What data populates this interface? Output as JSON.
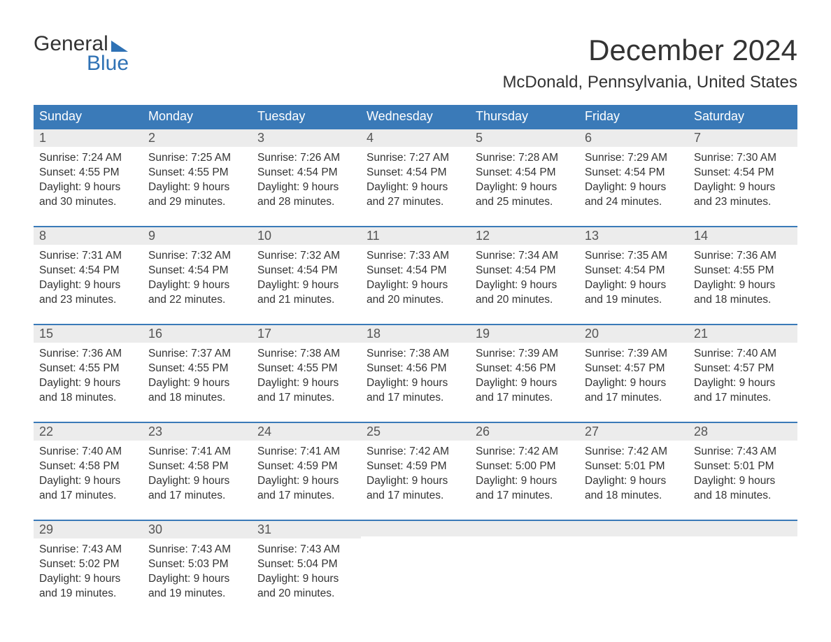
{
  "brand": {
    "line1": "General",
    "line2": "Blue"
  },
  "title": "December 2024",
  "location": "McDonald, Pennsylvania, United States",
  "colors": {
    "header_blue": "#3a7ab8",
    "band_grey": "#ececec",
    "text": "#333333",
    "page_bg": "#ffffff"
  },
  "weekdays": [
    "Sunday",
    "Monday",
    "Tuesday",
    "Wednesday",
    "Thursday",
    "Friday",
    "Saturday"
  ],
  "weeks": [
    [
      {
        "date": "1",
        "sunrise": "Sunrise: 7:24 AM",
        "sunset": "Sunset: 4:55 PM",
        "day1": "Daylight: 9 hours",
        "day2": "and 30 minutes."
      },
      {
        "date": "2",
        "sunrise": "Sunrise: 7:25 AM",
        "sunset": "Sunset: 4:55 PM",
        "day1": "Daylight: 9 hours",
        "day2": "and 29 minutes."
      },
      {
        "date": "3",
        "sunrise": "Sunrise: 7:26 AM",
        "sunset": "Sunset: 4:54 PM",
        "day1": "Daylight: 9 hours",
        "day2": "and 28 minutes."
      },
      {
        "date": "4",
        "sunrise": "Sunrise: 7:27 AM",
        "sunset": "Sunset: 4:54 PM",
        "day1": "Daylight: 9 hours",
        "day2": "and 27 minutes."
      },
      {
        "date": "5",
        "sunrise": "Sunrise: 7:28 AM",
        "sunset": "Sunset: 4:54 PM",
        "day1": "Daylight: 9 hours",
        "day2": "and 25 minutes."
      },
      {
        "date": "6",
        "sunrise": "Sunrise: 7:29 AM",
        "sunset": "Sunset: 4:54 PM",
        "day1": "Daylight: 9 hours",
        "day2": "and 24 minutes."
      },
      {
        "date": "7",
        "sunrise": "Sunrise: 7:30 AM",
        "sunset": "Sunset: 4:54 PM",
        "day1": "Daylight: 9 hours",
        "day2": "and 23 minutes."
      }
    ],
    [
      {
        "date": "8",
        "sunrise": "Sunrise: 7:31 AM",
        "sunset": "Sunset: 4:54 PM",
        "day1": "Daylight: 9 hours",
        "day2": "and 23 minutes."
      },
      {
        "date": "9",
        "sunrise": "Sunrise: 7:32 AM",
        "sunset": "Sunset: 4:54 PM",
        "day1": "Daylight: 9 hours",
        "day2": "and 22 minutes."
      },
      {
        "date": "10",
        "sunrise": "Sunrise: 7:32 AM",
        "sunset": "Sunset: 4:54 PM",
        "day1": "Daylight: 9 hours",
        "day2": "and 21 minutes."
      },
      {
        "date": "11",
        "sunrise": "Sunrise: 7:33 AM",
        "sunset": "Sunset: 4:54 PM",
        "day1": "Daylight: 9 hours",
        "day2": "and 20 minutes."
      },
      {
        "date": "12",
        "sunrise": "Sunrise: 7:34 AM",
        "sunset": "Sunset: 4:54 PM",
        "day1": "Daylight: 9 hours",
        "day2": "and 20 minutes."
      },
      {
        "date": "13",
        "sunrise": "Sunrise: 7:35 AM",
        "sunset": "Sunset: 4:54 PM",
        "day1": "Daylight: 9 hours",
        "day2": "and 19 minutes."
      },
      {
        "date": "14",
        "sunrise": "Sunrise: 7:36 AM",
        "sunset": "Sunset: 4:55 PM",
        "day1": "Daylight: 9 hours",
        "day2": "and 18 minutes."
      }
    ],
    [
      {
        "date": "15",
        "sunrise": "Sunrise: 7:36 AM",
        "sunset": "Sunset: 4:55 PM",
        "day1": "Daylight: 9 hours",
        "day2": "and 18 minutes."
      },
      {
        "date": "16",
        "sunrise": "Sunrise: 7:37 AM",
        "sunset": "Sunset: 4:55 PM",
        "day1": "Daylight: 9 hours",
        "day2": "and 18 minutes."
      },
      {
        "date": "17",
        "sunrise": "Sunrise: 7:38 AM",
        "sunset": "Sunset: 4:55 PM",
        "day1": "Daylight: 9 hours",
        "day2": "and 17 minutes."
      },
      {
        "date": "18",
        "sunrise": "Sunrise: 7:38 AM",
        "sunset": "Sunset: 4:56 PM",
        "day1": "Daylight: 9 hours",
        "day2": "and 17 minutes."
      },
      {
        "date": "19",
        "sunrise": "Sunrise: 7:39 AM",
        "sunset": "Sunset: 4:56 PM",
        "day1": "Daylight: 9 hours",
        "day2": "and 17 minutes."
      },
      {
        "date": "20",
        "sunrise": "Sunrise: 7:39 AM",
        "sunset": "Sunset: 4:57 PM",
        "day1": "Daylight: 9 hours",
        "day2": "and 17 minutes."
      },
      {
        "date": "21",
        "sunrise": "Sunrise: 7:40 AM",
        "sunset": "Sunset: 4:57 PM",
        "day1": "Daylight: 9 hours",
        "day2": "and 17 minutes."
      }
    ],
    [
      {
        "date": "22",
        "sunrise": "Sunrise: 7:40 AM",
        "sunset": "Sunset: 4:58 PM",
        "day1": "Daylight: 9 hours",
        "day2": "and 17 minutes."
      },
      {
        "date": "23",
        "sunrise": "Sunrise: 7:41 AM",
        "sunset": "Sunset: 4:58 PM",
        "day1": "Daylight: 9 hours",
        "day2": "and 17 minutes."
      },
      {
        "date": "24",
        "sunrise": "Sunrise: 7:41 AM",
        "sunset": "Sunset: 4:59 PM",
        "day1": "Daylight: 9 hours",
        "day2": "and 17 minutes."
      },
      {
        "date": "25",
        "sunrise": "Sunrise: 7:42 AM",
        "sunset": "Sunset: 4:59 PM",
        "day1": "Daylight: 9 hours",
        "day2": "and 17 minutes."
      },
      {
        "date": "26",
        "sunrise": "Sunrise: 7:42 AM",
        "sunset": "Sunset: 5:00 PM",
        "day1": "Daylight: 9 hours",
        "day2": "and 17 minutes."
      },
      {
        "date": "27",
        "sunrise": "Sunrise: 7:42 AM",
        "sunset": "Sunset: 5:01 PM",
        "day1": "Daylight: 9 hours",
        "day2": "and 18 minutes."
      },
      {
        "date": "28",
        "sunrise": "Sunrise: 7:43 AM",
        "sunset": "Sunset: 5:01 PM",
        "day1": "Daylight: 9 hours",
        "day2": "and 18 minutes."
      }
    ],
    [
      {
        "date": "29",
        "sunrise": "Sunrise: 7:43 AM",
        "sunset": "Sunset: 5:02 PM",
        "day1": "Daylight: 9 hours",
        "day2": "and 19 minutes."
      },
      {
        "date": "30",
        "sunrise": "Sunrise: 7:43 AM",
        "sunset": "Sunset: 5:03 PM",
        "day1": "Daylight: 9 hours",
        "day2": "and 19 minutes."
      },
      {
        "date": "31",
        "sunrise": "Sunrise: 7:43 AM",
        "sunset": "Sunset: 5:04 PM",
        "day1": "Daylight: 9 hours",
        "day2": "and 20 minutes."
      },
      null,
      null,
      null,
      null
    ]
  ]
}
